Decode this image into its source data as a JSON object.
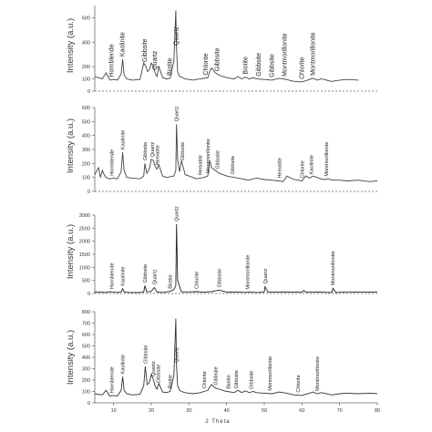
{
  "chart_data": [
    {
      "type": "line",
      "ylabel": "Intensity (a.u.)",
      "xlim": [
        5,
        80
      ],
      "ylim": [
        0,
        700
      ],
      "yticks": [
        0,
        100,
        200,
        400,
        600
      ],
      "xticks": [],
      "xlabel": "",
      "x": [
        5,
        7,
        8,
        9,
        10,
        11,
        12,
        12.4,
        12.8,
        13.5,
        15,
        17,
        18,
        18.6,
        19,
        19.6,
        20,
        20.6,
        21,
        21.5,
        22,
        23,
        24,
        25,
        26,
        26.5,
        26.7,
        27,
        27.5,
        28,
        29,
        30,
        31,
        32,
        33,
        34,
        35,
        35.5,
        36,
        37,
        38,
        39,
        40,
        41,
        42,
        43,
        44,
        45,
        46,
        47,
        48,
        50,
        52,
        54,
        55,
        56,
        57,
        58,
        60,
        61,
        62,
        63,
        64,
        65,
        66,
        67,
        68,
        70,
        72,
        75
      ],
      "series": [
        {
          "values": [
            120,
            100,
            150,
            90,
            95,
            90,
            140,
            260,
            130,
            100,
            90,
            95,
            230,
            200,
            160,
            180,
            230,
            200,
            150,
            120,
            200,
            110,
            100,
            105,
            250,
            660,
            350,
            160,
            120,
            115,
            100,
            95,
            90,
            95,
            100,
            105,
            110,
            160,
            190,
            150,
            130,
            120,
            110,
            105,
            100,
            120,
            100,
            115,
            100,
            110,
            100,
            95,
            90,
            105,
            100,
            95,
            85,
            80,
            75,
            85,
            95,
            105,
            90,
            100,
            95,
            85,
            80,
            90,
            95,
            90
          ]
        }
      ],
      "annotations": [
        {
          "label": "Hornblende",
          "x": 9.5
        },
        {
          "label": "Kaolinite",
          "x": 12.4
        },
        {
          "label": "Gibbsite",
          "x": 18.3
        },
        {
          "label": "Quartz",
          "x": 21
        },
        {
          "label": "Biotite",
          "x": 25
        },
        {
          "label": "Quartz",
          "x": 26.7
        },
        {
          "label": "Chlorite",
          "x": 34.5
        },
        {
          "label": "Gibbsite",
          "x": 37.5
        },
        {
          "label": "Biotite",
          "x": 45
        },
        {
          "label": "Gibbsite",
          "x": 48.5
        },
        {
          "label": "Gibbsite",
          "x": 52
        },
        {
          "label": "Montmorillonite",
          "x": 55.5
        },
        {
          "label": "Chlorite",
          "x": 60
        },
        {
          "label": "Montmorillonite",
          "x": 63
        }
      ]
    },
    {
      "type": "line",
      "ylabel": "Intensity (a.u.)",
      "xlim": [
        5,
        80
      ],
      "ylim": [
        0,
        600
      ],
      "yticks": [
        0,
        100,
        200,
        300,
        400,
        500,
        600
      ],
      "xticks": [],
      "xlabel": "",
      "x": [
        5,
        6,
        6.5,
        7,
        7.5,
        8,
        9,
        10,
        11,
        12,
        12.4,
        12.8,
        13.5,
        15,
        17,
        18,
        18.3,
        18.8,
        19.5,
        20,
        20.6,
        21,
        21.5,
        22,
        23,
        24,
        25,
        26,
        26.5,
        26.7,
        27,
        27.5,
        28,
        29,
        30,
        31,
        32,
        33,
        34,
        35,
        35.5,
        36,
        37,
        38,
        39,
        40,
        41,
        42,
        43,
        44,
        45,
        46,
        47,
        48,
        50,
        52,
        54,
        55,
        56,
        57,
        58,
        60,
        61,
        62,
        63,
        64,
        65,
        66,
        67,
        68,
        70,
        72,
        75,
        78,
        80
      ],
      "series": [
        {
          "values": [
            120,
            170,
            100,
            150,
            120,
            100,
            90,
            95,
            90,
            140,
            280,
            150,
            100,
            95,
            90,
            110,
            200,
            130,
            160,
            230,
            220,
            180,
            160,
            190,
            110,
            100,
            105,
            110,
            150,
            480,
            230,
            140,
            220,
            120,
            110,
            100,
            90,
            95,
            100,
            110,
            220,
            170,
            150,
            130,
            120,
            110,
            105,
            100,
            95,
            90,
            85,
            80,
            90,
            95,
            85,
            80,
            75,
            70,
            110,
            95,
            85,
            75,
            110,
            95,
            110,
            100,
            90,
            85,
            90,
            80,
            80,
            75,
            80,
            70,
            75
          ]
        }
      ],
      "annotations": [
        {
          "label": "Hornblende",
          "x": 9.5
        },
        {
          "label": "Kaolinite",
          "x": 12.4
        },
        {
          "label": "Gibbsite",
          "x": 18.3
        },
        {
          "label": "Quartz",
          "x": 20.3
        },
        {
          "label": "Hematite",
          "x": 21.6
        },
        {
          "label": "Quartz",
          "x": 26.7
        },
        {
          "label": "Gibbsite",
          "x": 28.2
        },
        {
          "label": "Hematite",
          "x": 33
        },
        {
          "label": "Montmorillonite",
          "x": 35
        },
        {
          "label": "Gibbsite",
          "x": 37.5
        },
        {
          "label": "Gibbsite",
          "x": 41.5
        },
        {
          "label": "Hematite",
          "x": 54
        },
        {
          "label": "Chlorite",
          "x": 60
        },
        {
          "label": "Kaolinite",
          "x": 62.5
        },
        {
          "label": "Montmorillonite",
          "x": 66.5
        }
      ]
    },
    {
      "type": "line",
      "ylabel": "Intensity (a.u.)",
      "xlim": [
        5,
        80
      ],
      "ylim": [
        0,
        3000
      ],
      "yticks": [
        0,
        500,
        1000,
        1500,
        2000,
        2500,
        3000
      ],
      "xticks": [],
      "xlabel": "",
      "x": [
        5,
        7,
        8,
        9,
        10,
        11,
        12,
        12.4,
        12.8,
        14,
        17,
        18,
        18.3,
        18.8,
        20,
        20.8,
        21.5,
        23,
        25,
        26,
        26.5,
        26.7,
        27,
        28,
        30,
        32,
        34,
        36,
        38,
        40,
        42,
        44,
        45,
        46,
        48,
        50,
        50.2,
        51,
        55,
        60,
        60.5,
        61,
        65,
        67,
        68,
        68.2,
        69,
        72,
        75,
        78,
        80
      ],
      "series": [
        {
          "values": [
            60,
            50,
            40,
            70,
            50,
            40,
            60,
            180,
            60,
            40,
            40,
            60,
            300,
            60,
            80,
            230,
            60,
            40,
            80,
            150,
            300,
            2650,
            500,
            60,
            60,
            70,
            50,
            70,
            130,
            50,
            60,
            50,
            40,
            60,
            40,
            60,
            260,
            50,
            60,
            50,
            120,
            50,
            60,
            40,
            50,
            200,
            40,
            60,
            50,
            50,
            60
          ]
        }
      ],
      "annotations": [
        {
          "label": "Hornblende",
          "x": 9.5
        },
        {
          "label": "Kaolinite",
          "x": 12.4
        },
        {
          "label": "Gibbsite",
          "x": 18.3
        },
        {
          "label": "Quartz",
          "x": 20.8
        },
        {
          "label": "Biotite",
          "x": 25
        },
        {
          "label": "Quartz",
          "x": 26.7
        },
        {
          "label": "Chlorite",
          "x": 32
        },
        {
          "label": "Gibbsite",
          "x": 38
        },
        {
          "label": "Montmorillonite",
          "x": 45.5
        },
        {
          "label": "Quartz",
          "x": 50.2
        },
        {
          "label": "Montmorillonite",
          "x": 68.2
        }
      ]
    },
    {
      "type": "line",
      "ylabel": "Intensity (a.u.)",
      "xlim": [
        5,
        80
      ],
      "ylim": [
        0,
        800
      ],
      "yticks": [
        0,
        100,
        200,
        300,
        400,
        500,
        600,
        700,
        800
      ],
      "xticks": [
        10,
        20,
        30,
        40,
        50,
        60,
        70,
        80
      ],
      "xlabel": "2 Theta",
      "x": [
        5,
        7,
        8,
        9,
        10,
        11,
        12,
        12.4,
        12.8,
        13.5,
        15,
        17,
        18,
        18.4,
        18.9,
        19.5,
        20,
        20.6,
        21,
        21.5,
        22,
        23,
        24,
        25,
        26,
        26.5,
        26.7,
        27,
        27.5,
        28,
        29,
        30,
        31,
        32,
        33,
        34,
        35,
        35.5,
        36,
        37,
        38,
        39,
        40,
        41,
        42,
        43,
        44,
        45,
        46,
        47,
        48,
        50,
        52,
        54,
        55,
        56,
        57,
        58,
        60,
        61,
        62,
        63,
        64,
        65,
        66,
        67,
        68,
        70,
        72,
        75,
        78,
        80
      ],
      "series": [
        {
          "values": [
            80,
            70,
            110,
            60,
            65,
            60,
            110,
            230,
            110,
            80,
            70,
            75,
            150,
            320,
            160,
            180,
            250,
            200,
            150,
            120,
            170,
            95,
            90,
            100,
            240,
            740,
            330,
            150,
            110,
            100,
            90,
            85,
            80,
            85,
            90,
            100,
            110,
            140,
            160,
            130,
            120,
            110,
            100,
            95,
            90,
            110,
            90,
            105,
            90,
            100,
            90,
            85,
            80,
            95,
            90,
            85,
            75,
            70,
            65,
            75,
            85,
            95,
            80,
            90,
            85,
            75,
            70,
            80,
            85,
            80,
            85,
            80
          ]
        }
      ],
      "annotations": [
        {
          "label": "Hornblende",
          "x": 9.5
        },
        {
          "label": "Kaolinite",
          "x": 12.4
        },
        {
          "label": "Gibbsite",
          "x": 18.4
        },
        {
          "label": "Quartz",
          "x": 20.5
        },
        {
          "label": "Gibbsite",
          "x": 21.8
        },
        {
          "label": "Biotite",
          "x": 25
        },
        {
          "label": "Quartz",
          "x": 26.7
        },
        {
          "label": "Chlorite",
          "x": 34
        },
        {
          "label": "Gibbsite",
          "x": 37
        },
        {
          "label": "Biotite",
          "x": 40.5
        },
        {
          "label": "Gibbsite",
          "x": 42.5
        },
        {
          "label": "Gibbsite",
          "x": 46.5
        },
        {
          "label": "Montmorillonite",
          "x": 51.5
        },
        {
          "label": "Chlorite",
          "x": 59
        },
        {
          "label": "Montmorillonite",
          "x": 64
        }
      ]
    }
  ]
}
